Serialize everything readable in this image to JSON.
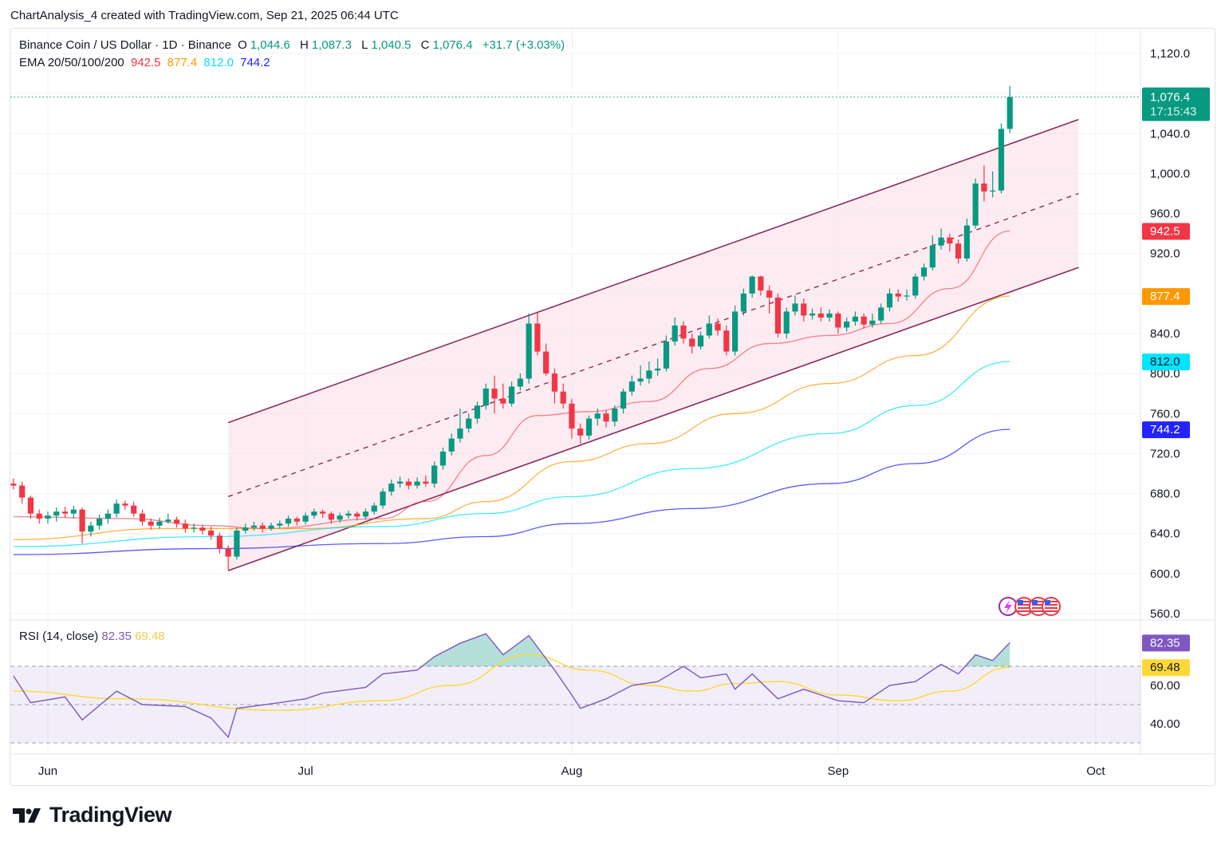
{
  "caption": "ChartAnalysis_4 created with TradingView.com, Sep 21, 2025 06:44 UTC",
  "legend": {
    "symbol": "Binance Coin / US Dollar · 1D · Binance",
    "o_label": "O",
    "o": "1,044.6",
    "h_label": "H",
    "h": "1,087.3",
    "l_label": "L",
    "l": "1,040.5",
    "c_label": "C",
    "c": "1,076.4",
    "change": "+31.7 (+3.03%)",
    "ema_label": "EMA 20/50/100/200",
    "ema_values": [
      "942.5",
      "877.4",
      "812.0",
      "744.2"
    ]
  },
  "rsi_legend": {
    "label": "RSI (14, close)",
    "rsi": "82.35",
    "ma": "69.48"
  },
  "logo_text": "TradingView",
  "colors": {
    "up": "#089981",
    "down": "#f23645",
    "ema20": "#f23645",
    "ema50": "#ff9800",
    "ema100": "#00e5ff",
    "ema200": "#2323ff",
    "channel": "#8e2a5e",
    "rsi": "#7e57c2",
    "rsi_ma": "#fdd835"
  },
  "chart_data": {
    "type": "candlestick",
    "title": "Binance Coin / US Dollar · 1D · Binance",
    "y_range": [
      560,
      1120
    ],
    "y_ticks": [
      "1,120.0",
      "1,040.0",
      "1,000.0",
      "960.0",
      "920.0",
      "840.0",
      "800.0",
      "760.0",
      "720.0",
      "680.0",
      "640.0",
      "600.0",
      "560.0"
    ],
    "x_ticks": [
      {
        "label": "Jun",
        "date": "06-01"
      },
      {
        "label": "Jul",
        "date": "07-01"
      },
      {
        "label": "Aug",
        "date": "08-01"
      },
      {
        "label": "Sep",
        "date": "09-01"
      },
      {
        "label": "Oct",
        "date": "10-01"
      }
    ],
    "last_price": {
      "value": "1,076.4",
      "countdown": "17:15:43"
    },
    "ema_badges": [
      "942.5",
      "877.4",
      "812.0",
      "744.2"
    ],
    "candles_columns": [
      "date",
      "open",
      "high",
      "low",
      "close"
    ],
    "candles": [
      [
        "05-28",
        690,
        695,
        684,
        688
      ],
      [
        "05-29",
        688,
        692,
        670,
        676
      ],
      [
        "05-30",
        676,
        678,
        655,
        660
      ],
      [
        "05-31",
        660,
        664,
        650,
        655
      ],
      [
        "06-01",
        655,
        662,
        650,
        658
      ],
      [
        "06-02",
        658,
        666,
        652,
        662
      ],
      [
        "06-03",
        662,
        667,
        656,
        660
      ],
      [
        "06-04",
        660,
        668,
        655,
        664
      ],
      [
        "06-05",
        664,
        666,
        630,
        642
      ],
      [
        "06-06",
        642,
        652,
        637,
        648
      ],
      [
        "06-07",
        648,
        659,
        644,
        655
      ],
      [
        "06-08",
        655,
        664,
        650,
        660
      ],
      [
        "06-09",
        660,
        674,
        656,
        670
      ],
      [
        "06-10",
        670,
        673,
        664,
        668
      ],
      [
        "06-11",
        668,
        672,
        657,
        660
      ],
      [
        "06-12",
        660,
        664,
        648,
        652
      ],
      [
        "06-13",
        652,
        655,
        644,
        648
      ],
      [
        "06-14",
        648,
        656,
        645,
        652
      ],
      [
        "06-15",
        652,
        660,
        650,
        654
      ],
      [
        "06-16",
        654,
        657,
        646,
        650
      ],
      [
        "06-17",
        650,
        654,
        641,
        645
      ],
      [
        "06-18",
        645,
        650,
        641,
        646
      ],
      [
        "06-19",
        646,
        649,
        639,
        643
      ],
      [
        "06-20",
        643,
        647,
        634,
        638
      ],
      [
        "06-21",
        638,
        641,
        620,
        625
      ],
      [
        "06-22",
        625,
        628,
        603,
        617
      ],
      [
        "06-23",
        617,
        646,
        614,
        643
      ],
      [
        "06-24",
        643,
        650,
        640,
        646
      ],
      [
        "06-25",
        646,
        652,
        643,
        648
      ],
      [
        "06-26",
        648,
        651,
        641,
        645
      ],
      [
        "06-27",
        645,
        651,
        643,
        648
      ],
      [
        "06-28",
        648,
        653,
        645,
        650
      ],
      [
        "06-29",
        650,
        658,
        647,
        655
      ],
      [
        "06-30",
        655,
        657,
        648,
        652
      ],
      [
        "07-01",
        652,
        661,
        649,
        658
      ],
      [
        "07-02",
        658,
        665,
        655,
        662
      ],
      [
        "07-03",
        662,
        664,
        656,
        660
      ],
      [
        "07-04",
        660,
        662,
        650,
        654
      ],
      [
        "07-05",
        654,
        661,
        651,
        658
      ],
      [
        "07-06",
        658,
        663,
        655,
        660
      ],
      [
        "07-07",
        660,
        662,
        653,
        657
      ],
      [
        "07-08",
        657,
        665,
        654,
        662
      ],
      [
        "07-09",
        662,
        671,
        659,
        668
      ],
      [
        "07-10",
        668,
        685,
        665,
        682
      ],
      [
        "07-11",
        682,
        694,
        678,
        690
      ],
      [
        "07-12",
        690,
        697,
        686,
        692
      ],
      [
        "07-13",
        692,
        695,
        684,
        688
      ],
      [
        "07-14",
        688,
        696,
        685,
        692
      ],
      [
        "07-15",
        692,
        698,
        687,
        690
      ],
      [
        "07-16",
        690,
        712,
        686,
        708
      ],
      [
        "07-17",
        708,
        726,
        704,
        722
      ],
      [
        "07-18",
        722,
        740,
        718,
        735
      ],
      [
        "07-19",
        735,
        765,
        731,
        745
      ],
      [
        "07-20",
        745,
        760,
        741,
        755
      ],
      [
        "07-21",
        755,
        772,
        750,
        768
      ],
      [
        "07-22",
        768,
        790,
        764,
        785
      ],
      [
        "07-23",
        785,
        798,
        760,
        775
      ],
      [
        "07-24",
        775,
        790,
        765,
        770
      ],
      [
        "07-25",
        770,
        792,
        767,
        787
      ],
      [
        "07-26",
        787,
        800,
        783,
        795
      ],
      [
        "07-27",
        795,
        860,
        790,
        850
      ],
      [
        "07-28",
        850,
        862,
        818,
        822
      ],
      [
        "07-29",
        822,
        830,
        798,
        800
      ],
      [
        "07-30",
        800,
        805,
        770,
        782
      ],
      [
        "07-31",
        782,
        790,
        765,
        770
      ],
      [
        "08-01",
        770,
        775,
        735,
        745
      ],
      [
        "08-02",
        745,
        750,
        730,
        738
      ],
      [
        "08-03",
        738,
        758,
        734,
        755
      ],
      [
        "08-04",
        755,
        765,
        748,
        760
      ],
      [
        "08-05",
        760,
        763,
        746,
        752
      ],
      [
        "08-06",
        752,
        768,
        747,
        765
      ],
      [
        "08-07",
        765,
        785,
        760,
        782
      ],
      [
        "08-08",
        782,
        798,
        778,
        792
      ],
      [
        "08-09",
        792,
        808,
        788,
        795
      ],
      [
        "08-10",
        795,
        812,
        790,
        803
      ],
      [
        "08-11",
        803,
        815,
        798,
        805
      ],
      [
        "08-12",
        805,
        838,
        802,
        832
      ],
      [
        "08-13",
        832,
        856,
        828,
        848
      ],
      [
        "08-14",
        848,
        852,
        830,
        835
      ],
      [
        "08-15",
        835,
        840,
        820,
        827
      ],
      [
        "08-16",
        827,
        842,
        824,
        838
      ],
      [
        "08-17",
        838,
        858,
        835,
        850
      ],
      [
        "08-18",
        850,
        855,
        838,
        843
      ],
      [
        "08-19",
        843,
        848,
        818,
        822
      ],
      [
        "08-20",
        822,
        868,
        818,
        862
      ],
      [
        "08-21",
        862,
        885,
        858,
        880
      ],
      [
        "08-22",
        880,
        898,
        876,
        897
      ],
      [
        "08-23",
        897,
        898,
        878,
        883
      ],
      [
        "08-24",
        883,
        888,
        860,
        876
      ],
      [
        "08-25",
        876,
        880,
        836,
        840
      ],
      [
        "08-26",
        840,
        866,
        835,
        862
      ],
      [
        "08-27",
        862,
        878,
        858,
        870
      ],
      [
        "08-28",
        870,
        875,
        852,
        858
      ],
      [
        "08-29",
        858,
        865,
        854,
        860
      ],
      [
        "08-30",
        860,
        866,
        852,
        856
      ],
      [
        "08-31",
        856,
        864,
        852,
        860
      ],
      [
        "09-01",
        860,
        862,
        840,
        846
      ],
      [
        "09-02",
        846,
        856,
        842,
        852
      ],
      [
        "09-03",
        852,
        862,
        848,
        857
      ],
      [
        "09-04",
        857,
        860,
        845,
        849
      ],
      [
        "09-05",
        849,
        860,
        846,
        853
      ],
      [
        "09-06",
        853,
        870,
        850,
        866
      ],
      [
        "09-07",
        866,
        885,
        862,
        880
      ],
      [
        "09-08",
        880,
        884,
        872,
        877
      ],
      [
        "09-09",
        877,
        884,
        873,
        878
      ],
      [
        "09-10",
        878,
        900,
        875,
        897
      ],
      [
        "09-11",
        897,
        910,
        893,
        906
      ],
      [
        "09-12",
        906,
        938,
        903,
        928
      ],
      [
        "09-13",
        928,
        945,
        924,
        936
      ],
      [
        "09-14",
        936,
        940,
        922,
        930
      ],
      [
        "09-15",
        930,
        934,
        910,
        915
      ],
      [
        "09-16",
        915,
        955,
        912,
        948
      ],
      [
        "09-17",
        948,
        995,
        945,
        990
      ],
      [
        "09-18",
        990,
        1008,
        972,
        982
      ],
      [
        "09-19",
        982,
        1002,
        976,
        983
      ],
      [
        "09-20",
        983,
        1050,
        980,
        1044.6
      ],
      [
        "09-21",
        1044.6,
        1087.3,
        1040.5,
        1076.4
      ]
    ],
    "ema": [
      {
        "name": "EMA 20",
        "last": 942.5,
        "points": [
          [
            "05-28",
            657
          ],
          [
            "06-10",
            655
          ],
          [
            "06-20",
            648
          ],
          [
            "06-26",
            645
          ],
          [
            "07-10",
            655
          ],
          [
            "07-15",
            672
          ],
          [
            "07-22",
            718
          ],
          [
            "07-28",
            758
          ],
          [
            "08-03",
            762
          ],
          [
            "08-10",
            772
          ],
          [
            "08-17",
            805
          ],
          [
            "08-24",
            830
          ],
          [
            "08-31",
            838
          ],
          [
            "09-07",
            850
          ],
          [
            "09-14",
            885
          ],
          [
            "09-21",
            942.5
          ]
        ]
      },
      {
        "name": "EMA 50",
        "last": 877.4,
        "points": [
          [
            "05-28",
            634
          ],
          [
            "06-15",
            645
          ],
          [
            "07-01",
            645
          ],
          [
            "07-15",
            655
          ],
          [
            "07-22",
            672
          ],
          [
            "08-01",
            712
          ],
          [
            "08-10",
            730
          ],
          [
            "08-20",
            760
          ],
          [
            "08-31",
            790
          ],
          [
            "09-10",
            818
          ],
          [
            "09-21",
            877.4
          ]
        ]
      },
      {
        "name": "EMA 100",
        "last": 812.0,
        "points": [
          [
            "05-28",
            627
          ],
          [
            "06-20",
            637
          ],
          [
            "07-10",
            647
          ],
          [
            "07-22",
            660
          ],
          [
            "08-01",
            677
          ],
          [
            "08-15",
            705
          ],
          [
            "08-31",
            740
          ],
          [
            "09-10",
            768
          ],
          [
            "09-21",
            812.0
          ]
        ]
      },
      {
        "name": "EMA 200",
        "last": 744.2,
        "points": [
          [
            "05-28",
            619
          ],
          [
            "06-20",
            625
          ],
          [
            "07-10",
            630
          ],
          [
            "07-22",
            637
          ],
          [
            "08-01",
            650
          ],
          [
            "08-15",
            665
          ],
          [
            "08-31",
            690
          ],
          [
            "09-10",
            710
          ],
          [
            "09-21",
            744.2
          ]
        ]
      }
    ],
    "channel": {
      "start": "06-22",
      "end": "09-29",
      "lower": [
        603,
        906
      ],
      "middle": [
        677,
        980
      ],
      "upper": [
        751,
        1054
      ]
    },
    "rsi": {
      "label": "RSI (14, close)",
      "y_ticks": [
        "60.00",
        "40.00"
      ],
      "levels": [
        70,
        50,
        30
      ],
      "value": "82.35",
      "ma_value": "69.48",
      "points": [
        [
          "05-28",
          65
        ],
        [
          "05-30",
          51
        ],
        [
          "06-03",
          54
        ],
        [
          "06-05",
          42
        ],
        [
          "06-09",
          57
        ],
        [
          "06-12",
          50
        ],
        [
          "06-17",
          49
        ],
        [
          "06-20",
          43
        ],
        [
          "06-22",
          33
        ],
        [
          "06-23",
          48
        ],
        [
          "06-28",
          51
        ],
        [
          "07-01",
          53
        ],
        [
          "07-03",
          56
        ],
        [
          "07-08",
          59
        ],
        [
          "07-10",
          66
        ],
        [
          "07-14",
          68
        ],
        [
          "07-16",
          75
        ],
        [
          "07-19",
          82
        ],
        [
          "07-22",
          87
        ],
        [
          "07-24",
          76
        ],
        [
          "07-27",
          86
        ],
        [
          "07-30",
          68
        ],
        [
          "08-01",
          55
        ],
        [
          "08-02",
          48
        ],
        [
          "08-05",
          53
        ],
        [
          "08-08",
          60
        ],
        [
          "08-11",
          62
        ],
        [
          "08-14",
          70
        ],
        [
          "08-16",
          64
        ],
        [
          "08-19",
          66
        ],
        [
          "08-20",
          58
        ],
        [
          "08-22",
          66
        ],
        [
          "08-25",
          53
        ],
        [
          "08-28",
          58
        ],
        [
          "09-01",
          52
        ],
        [
          "09-04",
          51
        ],
        [
          "09-07",
          60
        ],
        [
          "09-10",
          62
        ],
        [
          "09-13",
          71
        ],
        [
          "09-15",
          66
        ],
        [
          "09-17",
          76
        ],
        [
          "09-19",
          73
        ],
        [
          "09-21",
          82.35
        ]
      ],
      "ma_points": [
        [
          "05-28",
          57
        ],
        [
          "06-10",
          53
        ],
        [
          "06-28",
          47
        ],
        [
          "07-10",
          52
        ],
        [
          "07-18",
          60
        ],
        [
          "07-27",
          76
        ],
        [
          "08-03",
          68
        ],
        [
          "08-10",
          60
        ],
        [
          "08-15",
          57
        ],
        [
          "08-20",
          61
        ],
        [
          "08-25",
          62
        ],
        [
          "09-01",
          55
        ],
        [
          "09-08",
          52
        ],
        [
          "09-14",
          57
        ],
        [
          "09-21",
          69.48
        ]
      ]
    }
  }
}
